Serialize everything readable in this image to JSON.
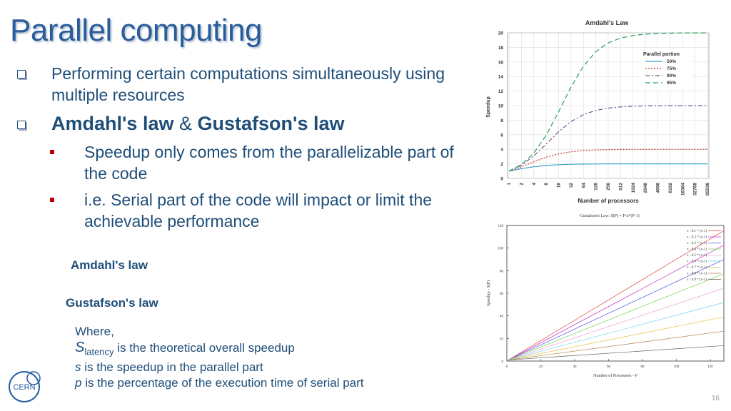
{
  "slide": {
    "title": "Parallel computing",
    "bullet1": "Performing certain computations simultaneously using multiple resources",
    "bullet2": {
      "part1": "Amdahl's law",
      "amp": "&",
      "part2": "Gustafson's law"
    },
    "sub1": "Speedup only comes from the parallelizable part of the code",
    "sub2": "i.e. Serial part of the code will impact or limit the achievable performance",
    "amdahl_label": "Amdahl's law",
    "gustafson_label": "Gustafson's law",
    "where": {
      "line1": "Where,",
      "s_sym": "S",
      "s_sub": "latency",
      "s_text": "is the theoretical overall speedup",
      "s2_sym": "s",
      "s2_text": "is the speedup in the parallel part",
      "p_sym": "p",
      "p_text": "is the percentage of the execution time of serial part"
    },
    "page_number": "16",
    "logo_text": "CERN",
    "colors": {
      "title": "#2a5c9a",
      "text": "#1f4e79",
      "bullet_square": "#c00000"
    }
  },
  "chart_data": [
    {
      "type": "line",
      "title": "Amdahl's Law",
      "xlabel": "Number of processors",
      "ylabel": "Speedup",
      "x": [
        "1",
        "2",
        "4",
        "8",
        "16",
        "32",
        "64",
        "128",
        "256",
        "512",
        "1024",
        "2048",
        "4096",
        "8192",
        "16384",
        "32768",
        "65536"
      ],
      "ylim": [
        0,
        20
      ],
      "yticks": [
        0,
        2,
        4,
        6,
        8,
        10,
        12,
        14,
        16,
        18,
        20
      ],
      "legend_title": "Parallel portion",
      "legend_position": "top-right",
      "series": [
        {
          "name": "50%",
          "color": "#3aa0c8",
          "dash": "",
          "p": 0.5
        },
        {
          "name": "75%",
          "color": "#c0392b",
          "dash": "2,2",
          "p": 0.75
        },
        {
          "name": "90%",
          "color": "#6c5a8c",
          "dash": "6,3,2,3",
          "p": 0.9
        },
        {
          "name": "95%",
          "color": "#27a05a",
          "dash": "7,4",
          "p": 0.95
        }
      ]
    },
    {
      "type": "line",
      "title": "Gustafson's Law: S(P) = P-a*(P-1)",
      "xlabel": "Number of Processors - P",
      "ylabel": "Speedup - S(P)",
      "xlim": [
        0,
        128
      ],
      "ylim": [
        0,
        120
      ],
      "xticks": [
        0,
        20,
        40,
        60,
        80,
        100,
        120
      ],
      "yticks": [
        0,
        20,
        40,
        60,
        80,
        100,
        120
      ],
      "legend_position": "top-right",
      "series": [
        {
          "name": "x - 0.1 * (x-1)",
          "a": 0.1,
          "color": "#e0453a"
        },
        {
          "name": "x - 0.2 * (x-1)",
          "a": 0.2,
          "color": "#c832c8"
        },
        {
          "name": "x - 0.3 * (x-1)",
          "a": 0.3,
          "color": "#4a4ae0"
        },
        {
          "name": "x - 0.4 * (x-1)",
          "a": 0.4,
          "color": "#6ad84a"
        },
        {
          "name": "x - 0.5 * (x-1)",
          "a": 0.5,
          "color": "#f0a0d8"
        },
        {
          "name": "x - 0.6 * (x-1)",
          "a": 0.6,
          "color": "#6ad0f0"
        },
        {
          "name": "x - 0.7 * (x-1)",
          "a": 0.7,
          "color": "#e0c040"
        },
        {
          "name": "x - 0.8 * (x-1)",
          "a": 0.8,
          "color": "#b08040"
        },
        {
          "name": "x - 0.9 * (x-1)",
          "a": 0.9,
          "color": "#606060"
        }
      ]
    }
  ]
}
